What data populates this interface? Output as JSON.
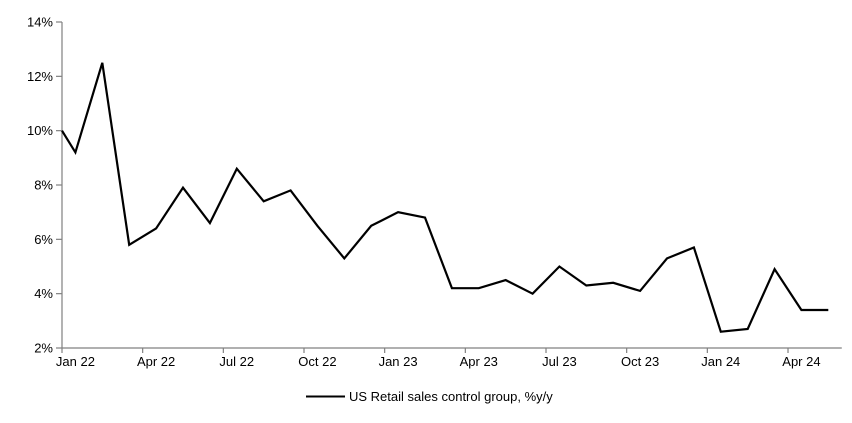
{
  "page": {
    "background": "#ffffff"
  },
  "chart_data": {
    "type": "line",
    "title": "",
    "x_months": [
      "Jan 22",
      "Feb 22",
      "Mar 22",
      "Apr 22",
      "May 22",
      "Jun 22",
      "Jul 22",
      "Aug 22",
      "Sep 22",
      "Oct 22",
      "Nov 22",
      "Dec 22",
      "Jan 23",
      "Feb 23",
      "Mar 23",
      "Apr 23",
      "May 23",
      "Jun 23",
      "Jul 23",
      "Aug 23",
      "Sep 23",
      "Oct 23",
      "Nov 23",
      "Dec 23",
      "Jan 24",
      "Feb 24",
      "Mar 24",
      "Apr 24",
      "May 24"
    ],
    "series": [
      {
        "name": "US Retail sales control group, %y/y",
        "color": "#000000",
        "values": [
          9.2,
          12.5,
          5.8,
          6.4,
          7.9,
          6.6,
          8.6,
          7.4,
          7.8,
          6.5,
          5.3,
          6.5,
          7.0,
          6.8,
          4.2,
          4.2,
          4.5,
          4.0,
          5.0,
          4.3,
          4.4,
          4.1,
          5.3,
          5.7,
          2.6,
          2.7,
          4.9,
          3.4,
          3.4
        ]
      }
    ],
    "lead_in_value_at_axis": 10.0,
    "ylim": [
      2,
      14
    ],
    "y_ticks": [
      2,
      4,
      6,
      8,
      10,
      12,
      14
    ],
    "y_tick_labels": [
      "2%",
      "4%",
      "6%",
      "8%",
      "10%",
      "12%",
      "14%"
    ],
    "x_tick_labels": [
      "Jan 22",
      "Apr 22",
      "Jul 22",
      "Oct 22",
      "Jan 23",
      "Apr 23",
      "Jul 23",
      "Oct 23",
      "Jan 24",
      "Apr 24"
    ],
    "x_label_every_n_months": 3,
    "grid": "off",
    "legend": {
      "position": "bottom-center",
      "label": "US Retail sales control group, %y/y"
    },
    "colors": {
      "line": "#000000",
      "axis": "#808080",
      "text": "#000000"
    }
  }
}
